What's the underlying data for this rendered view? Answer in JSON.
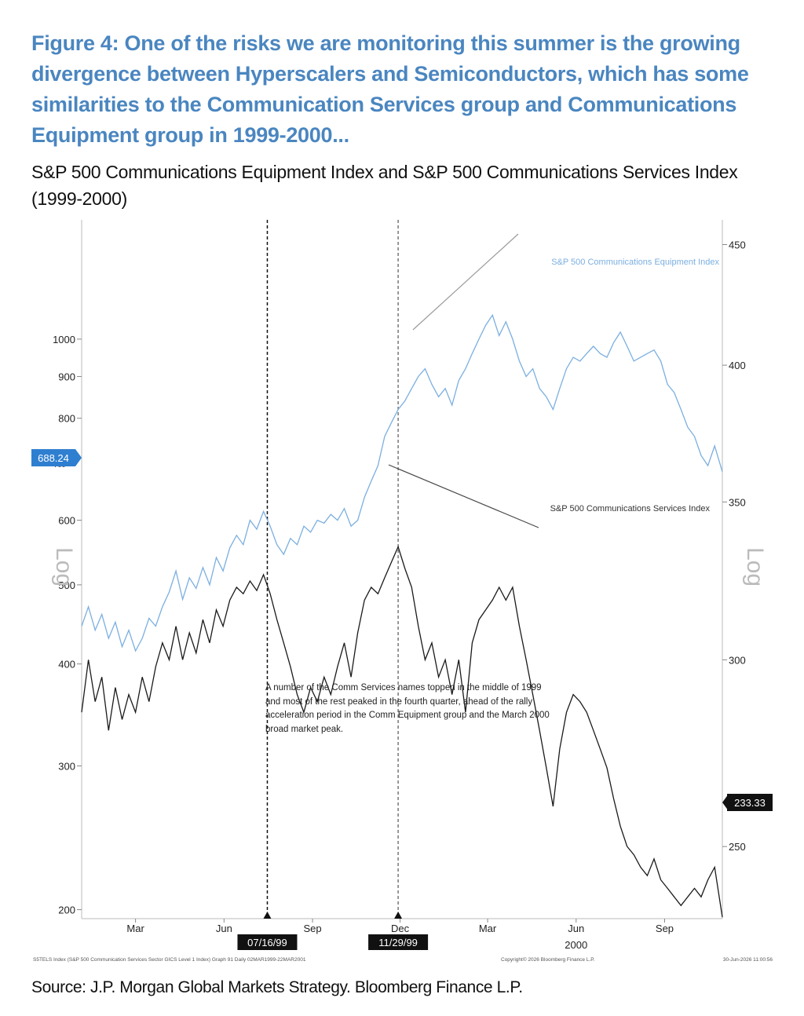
{
  "figure": {
    "title": "Figure 4: One of the risks we are monitoring this summer is the growing divergence between Hyperscalers and Semiconductors, which has some similarities to the Communication Services group and Communications Equipment group in 1999-2000...",
    "subtitle": "S&P 500 Communications Equipment Index and S&P 500 Communications Services Index (1999-2000)",
    "source": "Source: J.P. Morgan Global Markets Strategy. Bloomberg Finance L.P.",
    "footer_left": "S5TELS Index (S&P 500 Communication Services Sector GICS Level 1 Index) Graph 91 Daily 02MAR1999-22MAR2001",
    "footer_center": "Copyright© 2026 Bloomberg Finance L.P.",
    "footer_right": "30-Jun-2026 11:00:56"
  },
  "chart_data": {
    "type": "line",
    "x_start": "1999-01-04",
    "x_end": "2000-10-31",
    "x_ticks": [
      {
        "label": "Mar",
        "date": "1999-03-01"
      },
      {
        "label": "Jun",
        "date": "1999-06-01"
      },
      {
        "label": "Sep",
        "date": "1999-09-01"
      },
      {
        "label": "Dec",
        "date": "1999-12-01"
      },
      {
        "label": "Mar",
        "date": "2000-03-01"
      },
      {
        "label": "Jun",
        "date": "2000-06-01"
      },
      {
        "label": "Sep",
        "date": "2000-09-01"
      }
    ],
    "x_year_label": {
      "label": "2000",
      "date": "2000-06-01"
    },
    "left_axis": {
      "label": "Log",
      "scale": "log",
      "range": [
        195,
        1400
      ],
      "ticks": [
        200,
        300,
        400,
        500,
        600,
        800,
        900,
        1000
      ],
      "partial_tick": "700"
    },
    "right_axis": {
      "label": "Log",
      "scale": "log",
      "range": [
        233,
        461
      ],
      "ticks": [
        250,
        300,
        350,
        400,
        450
      ]
    },
    "series": [
      {
        "name": "S&P 500 Communications Equipment Index",
        "axis": "left",
        "color": "#7bafe0",
        "last_value": "688.24",
        "points": [
          [
            "1999-01-04",
            445
          ],
          [
            "1999-01-11",
            470
          ],
          [
            "1999-01-18",
            440
          ],
          [
            "1999-01-25",
            460
          ],
          [
            "1999-02-01",
            430
          ],
          [
            "1999-02-08",
            450
          ],
          [
            "1999-02-15",
            420
          ],
          [
            "1999-02-22",
            440
          ],
          [
            "1999-03-01",
            415
          ],
          [
            "1999-03-08",
            430
          ],
          [
            "1999-03-15",
            455
          ],
          [
            "1999-03-22",
            445
          ],
          [
            "1999-03-29",
            470
          ],
          [
            "1999-04-05",
            490
          ],
          [
            "1999-04-12",
            520
          ],
          [
            "1999-04-19",
            480
          ],
          [
            "1999-04-26",
            510
          ],
          [
            "1999-05-03",
            495
          ],
          [
            "1999-05-10",
            525
          ],
          [
            "1999-05-17",
            500
          ],
          [
            "1999-05-24",
            540
          ],
          [
            "1999-05-31",
            520
          ],
          [
            "1999-06-07",
            555
          ],
          [
            "1999-06-14",
            575
          ],
          [
            "1999-06-21",
            560
          ],
          [
            "1999-06-28",
            600
          ],
          [
            "1999-07-05",
            585
          ],
          [
            "1999-07-12",
            615
          ],
          [
            "1999-07-19",
            590
          ],
          [
            "1999-07-26",
            560
          ],
          [
            "1999-08-02",
            545
          ],
          [
            "1999-08-09",
            570
          ],
          [
            "1999-08-16",
            560
          ],
          [
            "1999-08-23",
            590
          ],
          [
            "1999-08-30",
            580
          ],
          [
            "1999-09-06",
            600
          ],
          [
            "1999-09-13",
            595
          ],
          [
            "1999-09-20",
            610
          ],
          [
            "1999-09-27",
            600
          ],
          [
            "1999-10-04",
            620
          ],
          [
            "1999-10-11",
            590
          ],
          [
            "1999-10-18",
            600
          ],
          [
            "1999-10-25",
            640
          ],
          [
            "1999-11-01",
            670
          ],
          [
            "1999-11-08",
            700
          ],
          [
            "1999-11-15",
            760
          ],
          [
            "1999-11-22",
            790
          ],
          [
            "1999-11-29",
            820
          ],
          [
            "1999-12-06",
            840
          ],
          [
            "1999-12-13",
            870
          ],
          [
            "1999-12-20",
            900
          ],
          [
            "1999-12-27",
            920
          ],
          [
            "2000-01-03",
            880
          ],
          [
            "2000-01-10",
            850
          ],
          [
            "2000-01-17",
            870
          ],
          [
            "2000-01-24",
            830
          ],
          [
            "2000-01-31",
            890
          ],
          [
            "2000-02-07",
            920
          ],
          [
            "2000-02-14",
            960
          ],
          [
            "2000-02-21",
            1000
          ],
          [
            "2000-02-28",
            1040
          ],
          [
            "2000-03-06",
            1070
          ],
          [
            "2000-03-13",
            1010
          ],
          [
            "2000-03-20",
            1050
          ],
          [
            "2000-03-27",
            1000
          ],
          [
            "2000-04-03",
            940
          ],
          [
            "2000-04-10",
            900
          ],
          [
            "2000-04-17",
            920
          ],
          [
            "2000-04-24",
            870
          ],
          [
            "2000-05-01",
            850
          ],
          [
            "2000-05-08",
            820
          ],
          [
            "2000-05-15",
            870
          ],
          [
            "2000-05-22",
            920
          ],
          [
            "2000-05-29",
            950
          ],
          [
            "2000-06-05",
            940
          ],
          [
            "2000-06-12",
            960
          ],
          [
            "2000-06-19",
            980
          ],
          [
            "2000-06-26",
            960
          ],
          [
            "2000-07-03",
            950
          ],
          [
            "2000-07-10",
            990
          ],
          [
            "2000-07-17",
            1020
          ],
          [
            "2000-07-24",
            980
          ],
          [
            "2000-07-31",
            940
          ],
          [
            "2000-08-07",
            950
          ],
          [
            "2000-08-14",
            960
          ],
          [
            "2000-08-21",
            970
          ],
          [
            "2000-08-28",
            940
          ],
          [
            "2000-09-04",
            880
          ],
          [
            "2000-09-11",
            860
          ],
          [
            "2000-09-18",
            820
          ],
          [
            "2000-09-25",
            780
          ],
          [
            "2000-10-02",
            760
          ],
          [
            "2000-10-09",
            720
          ],
          [
            "2000-10-16",
            700
          ],
          [
            "2000-10-23",
            740
          ],
          [
            "2000-10-31",
            688
          ]
        ]
      },
      {
        "name": "S&P 500 Communications Services Index",
        "axis": "right",
        "color": "#1a1a1a",
        "last_value": "233.33",
        "points": [
          [
            "1999-01-04",
            285
          ],
          [
            "1999-01-11",
            300
          ],
          [
            "1999-01-18",
            288
          ],
          [
            "1999-01-25",
            295
          ],
          [
            "1999-02-01",
            280
          ],
          [
            "1999-02-08",
            292
          ],
          [
            "1999-02-15",
            283
          ],
          [
            "1999-02-22",
            290
          ],
          [
            "1999-03-01",
            285
          ],
          [
            "1999-03-08",
            295
          ],
          [
            "1999-03-15",
            288
          ],
          [
            "1999-03-22",
            298
          ],
          [
            "1999-03-29",
            305
          ],
          [
            "1999-04-05",
            300
          ],
          [
            "1999-04-12",
            310
          ],
          [
            "1999-04-19",
            300
          ],
          [
            "1999-04-26",
            308
          ],
          [
            "1999-05-03",
            302
          ],
          [
            "1999-05-10",
            312
          ],
          [
            "1999-05-17",
            305
          ],
          [
            "1999-05-24",
            315
          ],
          [
            "1999-05-31",
            310
          ],
          [
            "1999-06-07",
            318
          ],
          [
            "1999-06-14",
            322
          ],
          [
            "1999-06-21",
            320
          ],
          [
            "1999-06-28",
            324
          ],
          [
            "1999-07-05",
            321
          ],
          [
            "1999-07-12",
            326
          ],
          [
            "1999-07-19",
            320
          ],
          [
            "1999-07-26",
            312
          ],
          [
            "1999-08-02",
            305
          ],
          [
            "1999-08-09",
            298
          ],
          [
            "1999-08-16",
            290
          ],
          [
            "1999-08-23",
            285
          ],
          [
            "1999-08-30",
            292
          ],
          [
            "1999-09-06",
            288
          ],
          [
            "1999-09-13",
            295
          ],
          [
            "1999-09-20",
            290
          ],
          [
            "1999-09-27",
            298
          ],
          [
            "1999-10-04",
            305
          ],
          [
            "1999-10-11",
            295
          ],
          [
            "1999-10-18",
            308
          ],
          [
            "1999-10-25",
            318
          ],
          [
            "1999-11-01",
            322
          ],
          [
            "1999-11-08",
            320
          ],
          [
            "1999-11-15",
            325
          ],
          [
            "1999-11-22",
            330
          ],
          [
            "1999-11-29",
            335
          ],
          [
            "1999-12-06",
            328
          ],
          [
            "1999-12-13",
            322
          ],
          [
            "1999-12-20",
            310
          ],
          [
            "1999-12-27",
            300
          ],
          [
            "2000-01-03",
            305
          ],
          [
            "2000-01-10",
            295
          ],
          [
            "2000-01-17",
            300
          ],
          [
            "2000-01-24",
            290
          ],
          [
            "2000-01-31",
            300
          ],
          [
            "2000-02-07",
            285
          ],
          [
            "2000-02-14",
            305
          ],
          [
            "2000-02-21",
            312
          ],
          [
            "2000-02-28",
            315
          ],
          [
            "2000-03-06",
            318
          ],
          [
            "2000-03-13",
            322
          ],
          [
            "2000-03-20",
            318
          ],
          [
            "2000-03-27",
            322
          ],
          [
            "2000-04-03",
            310
          ],
          [
            "2000-04-10",
            300
          ],
          [
            "2000-04-17",
            290
          ],
          [
            "2000-04-24",
            280
          ],
          [
            "2000-05-01",
            270
          ],
          [
            "2000-05-08",
            260
          ],
          [
            "2000-05-15",
            275
          ],
          [
            "2000-05-22",
            285
          ],
          [
            "2000-05-29",
            290
          ],
          [
            "2000-06-05",
            288
          ],
          [
            "2000-06-12",
            285
          ],
          [
            "2000-06-19",
            280
          ],
          [
            "2000-06-26",
            275
          ],
          [
            "2000-07-03",
            270
          ],
          [
            "2000-07-10",
            262
          ],
          [
            "2000-07-17",
            255
          ],
          [
            "2000-07-24",
            250
          ],
          [
            "2000-07-31",
            248
          ],
          [
            "2000-08-07",
            245
          ],
          [
            "2000-08-14",
            243
          ],
          [
            "2000-08-21",
            247
          ],
          [
            "2000-08-28",
            242
          ],
          [
            "2000-09-04",
            240
          ],
          [
            "2000-09-11",
            238
          ],
          [
            "2000-09-18",
            236
          ],
          [
            "2000-09-25",
            238
          ],
          [
            "2000-10-02",
            240
          ],
          [
            "2000-10-09",
            238
          ],
          [
            "2000-10-16",
            242
          ],
          [
            "2000-10-23",
            245
          ],
          [
            "2000-10-31",
            233.33
          ]
        ]
      }
    ],
    "event_lines": [
      {
        "date": "1999-07-16",
        "label": "07/16/99"
      },
      {
        "date": "1999-11-29",
        "label": "11/29/99"
      }
    ],
    "annotation": "A number of the Comm Services names topped in the middle of 1999 and most of the rest peaked in the fourth quarter, ahead of the rally acceleration period in the Comm Equipment group and the March 2000 broad market peak.",
    "legend": "labels on the lines",
    "grid": false
  }
}
